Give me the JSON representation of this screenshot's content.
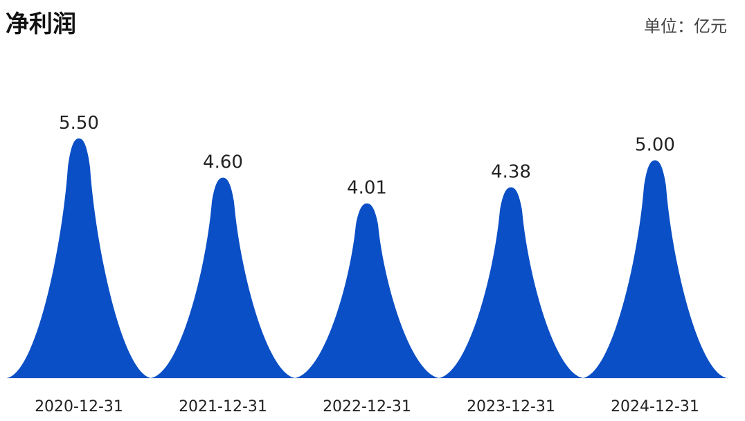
{
  "chart_data": {
    "type": "bar",
    "title": "净利润",
    "unit_label": "单位：亿元",
    "categories": [
      "2020-12-31",
      "2021-12-31",
      "2022-12-31",
      "2023-12-31",
      "2024-12-31"
    ],
    "values": [
      5.5,
      4.6,
      4.01,
      4.38,
      5.0
    ],
    "value_labels": [
      "5.50",
      "4.60",
      "4.01",
      "4.38",
      "5.00"
    ],
    "bar_shape": "spike",
    "ylim": [
      0,
      5.5
    ],
    "grid": false,
    "legend": "none",
    "color": "#0B4FC6"
  }
}
